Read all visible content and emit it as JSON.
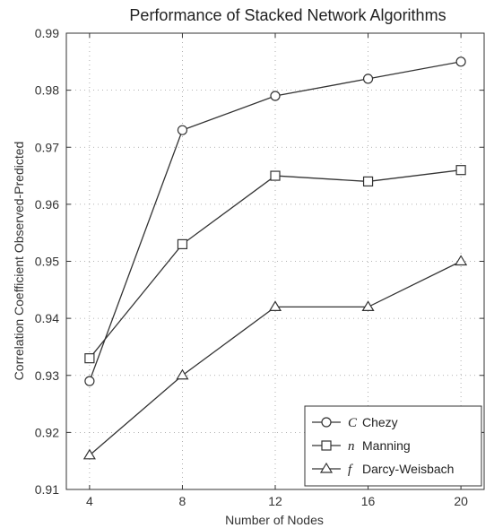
{
  "chart_data": {
    "type": "line",
    "title": "Performance of Stacked Network Algorithms",
    "xlabel": "Number of Nodes",
    "ylabel": "Correlation Coefficient Observed-Predicted",
    "x": [
      4,
      8,
      12,
      16,
      20
    ],
    "x_ticks": [
      "4",
      "8",
      "12",
      "16",
      "20"
    ],
    "y_ticks": [
      "0.91",
      "0.92",
      "0.93",
      "0.94",
      "0.95",
      "0.96",
      "0.97",
      "0.98",
      "0.99"
    ],
    "xlim": [
      3,
      21
    ],
    "ylim": [
      0.91,
      0.99
    ],
    "grid": true,
    "legend_position": "bottom-right",
    "series": [
      {
        "name": "Chezy",
        "symbol": "C",
        "marker": "circle",
        "values": [
          0.929,
          0.973,
          0.979,
          0.982,
          0.985
        ]
      },
      {
        "name": "Manning",
        "symbol": "n",
        "marker": "square",
        "values": [
          0.933,
          0.953,
          0.965,
          0.964,
          0.966
        ]
      },
      {
        "name": "Darcy-Weisbach",
        "symbol": "f",
        "marker": "triangle",
        "values": [
          0.916,
          0.93,
          0.942,
          0.942,
          0.95
        ]
      }
    ],
    "line_color": "#333333"
  }
}
